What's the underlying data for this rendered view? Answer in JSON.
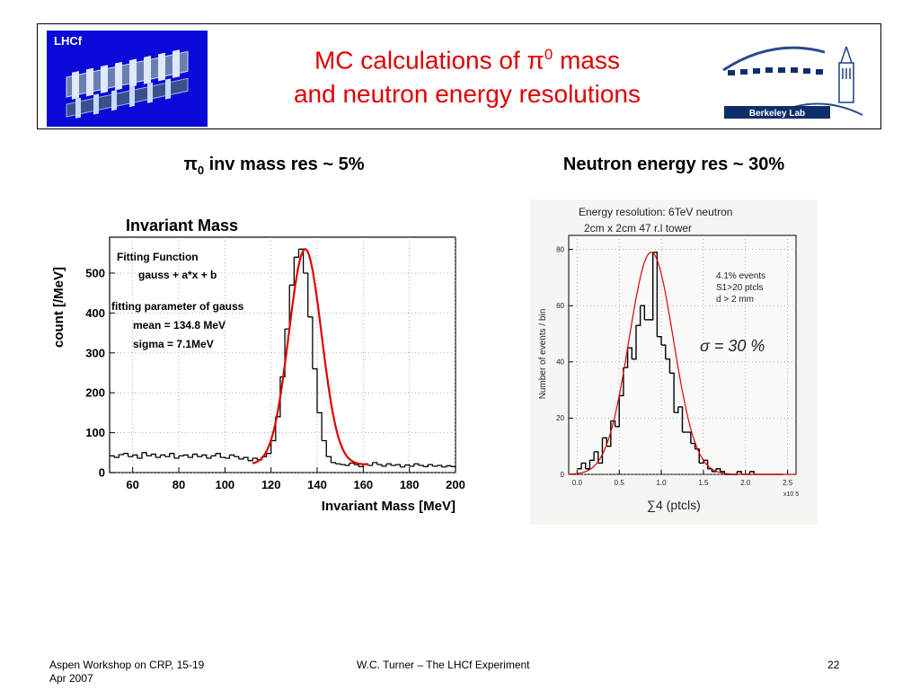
{
  "header": {
    "title_line1_pre": "MC calculations of ",
    "pi_symbol": "π",
    "title_sup": "0",
    "title_line1_post": " mass",
    "title_line2": "and neutron energy resolutions",
    "lhcf_logo_label": "LHCf",
    "berkeley_logo_label": "Berkeley Lab"
  },
  "left_heading": {
    "pi": "π",
    "sub": "0",
    "text": " inv mass res ~ 5%"
  },
  "right_heading": {
    "text": "Neutron energy res ~ 30%"
  },
  "chart_data": [
    {
      "type": "histogram",
      "title": "Invariant Mass",
      "xlabel": "Invariant Mass [MeV]",
      "ylabel": "count [/MeV]",
      "xlim": [
        50,
        200
      ],
      "ylim": [
        0,
        590
      ],
      "xticks": [
        "60",
        "80",
        "100",
        "120",
        "140",
        "160",
        "180",
        "200"
      ],
      "yticks": [
        "0",
        "100",
        "200",
        "300",
        "400",
        "500"
      ],
      "annotations": [
        "Fitting Function",
        "gauss + a*x + b",
        "fitting parameter of gauss",
        "mean =  134.8 MeV",
        "sigma = 7.1MeV"
      ],
      "fit": {
        "function": "gauss + a*x + b",
        "mean": 134.8,
        "sigma": 7.1
      },
      "x": [
        51,
        53,
        55,
        57,
        59,
        61,
        63,
        65,
        67,
        69,
        71,
        73,
        75,
        77,
        79,
        81,
        83,
        85,
        87,
        89,
        91,
        93,
        95,
        97,
        99,
        101,
        103,
        105,
        107,
        109,
        111,
        113,
        115,
        117,
        119,
        121,
        123,
        125,
        127,
        129,
        131,
        133,
        135,
        137,
        139,
        141,
        143,
        145,
        147,
        149,
        151,
        153,
        155,
        157,
        159,
        161,
        163,
        165,
        167,
        169,
        171,
        173,
        175,
        177,
        179,
        181,
        183,
        185,
        187,
        189,
        191,
        193,
        195,
        197,
        199
      ],
      "values": [
        42,
        38,
        45,
        48,
        40,
        44,
        36,
        50,
        42,
        46,
        38,
        44,
        40,
        48,
        36,
        42,
        44,
        38,
        46,
        40,
        44,
        36,
        42,
        48,
        38,
        36,
        44,
        40,
        34,
        38,
        30,
        36,
        32,
        40,
        48,
        80,
        140,
        240,
        360,
        470,
        540,
        560,
        500,
        390,
        260,
        150,
        80,
        40,
        25,
        22,
        20,
        18,
        24,
        20,
        15,
        22,
        18,
        25,
        20,
        16,
        22,
        18,
        20,
        14,
        19,
        16,
        22,
        18,
        15,
        20,
        16,
        18,
        14,
        17,
        15
      ],
      "grid": true
    },
    {
      "type": "histogram",
      "title": "Energy resolution: 6TeV neutron",
      "subtitle": "2cm x 2cm 47 r.l tower",
      "xlabel": "∑4 (ptcls)",
      "ylabel": "Number of events / bin",
      "x_multiplier": "x10 5",
      "xlim": [
        -0.1,
        2.6
      ],
      "ylim": [
        0,
        85
      ],
      "xticks": [
        "0.0",
        "0.5",
        "1.0",
        "1.5",
        "2.0",
        "2.5"
      ],
      "yticks": [
        "0",
        "20",
        "40",
        "60",
        "80"
      ],
      "annotations": [
        "4.1% events",
        "S1>20 ptcls",
        "d > 2 mm",
        "σ = 30 %"
      ],
      "x": [
        0.025,
        0.075,
        0.125,
        0.175,
        0.225,
        0.275,
        0.325,
        0.375,
        0.425,
        0.475,
        0.525,
        0.575,
        0.625,
        0.675,
        0.725,
        0.775,
        0.825,
        0.875,
        0.925,
        0.975,
        1.025,
        1.075,
        1.125,
        1.175,
        1.225,
        1.275,
        1.325,
        1.375,
        1.425,
        1.475,
        1.525,
        1.575,
        1.625,
        1.675,
        1.725,
        1.775,
        1.825,
        1.875,
        1.925,
        1.975,
        2.025,
        2.075,
        2.125,
        2.175,
        2.225,
        2.275,
        2.325,
        2.375,
        2.425
      ],
      "values": [
        2,
        4,
        2,
        5,
        8,
        4,
        13,
        10,
        19,
        17,
        28,
        38,
        45,
        41,
        53,
        60,
        55,
        55,
        79,
        49,
        46,
        41,
        36,
        22,
        24,
        15,
        15,
        11,
        9,
        4,
        5,
        2,
        1,
        2,
        1,
        0,
        0,
        0,
        1,
        0,
        0,
        1,
        0,
        0,
        0,
        0,
        0,
        0,
        0
      ],
      "fit": {
        "function": "gauss",
        "mean": 0.88,
        "sigma": 0.264
      },
      "grid": true
    }
  ],
  "footer": {
    "left_line1": "Aspen Workshop on CRP, 15-19",
    "left_line2": "Apr 2007",
    "center": "W.C. Turner – The LHCf Experiment",
    "page": "22"
  },
  "colors": {
    "title": "#e00000",
    "fit": "#e00000",
    "lhcf_bg": "#0a0ad8",
    "berkeley": "#0e2d6b"
  }
}
